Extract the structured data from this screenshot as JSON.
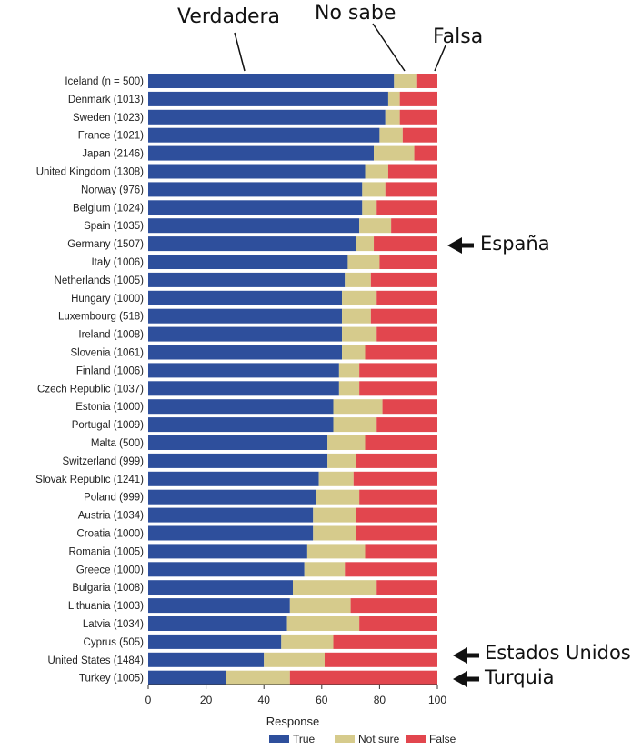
{
  "chart_data": {
    "type": "bar",
    "stacked": true,
    "orientation": "horizontal",
    "categories": [
      "Iceland (n = 500)",
      "Denmark (1013)",
      "Sweden (1023)",
      "France (1021)",
      "Japan (2146)",
      "United Kingdom (1308)",
      "Norway (976)",
      "Belgium (1024)",
      "Spain (1035)",
      "Germany (1507)",
      "Italy (1006)",
      "Netherlands (1005)",
      "Hungary (1000)",
      "Luxembourg (518)",
      "Ireland (1008)",
      "Slovenia (1061)",
      "Finland (1006)",
      "Czech Republic (1037)",
      "Estonia (1000)",
      "Portugal (1009)",
      "Malta (500)",
      "Switzerland (999)",
      "Slovak Republic (1241)",
      "Poland (999)",
      "Austria (1034)",
      "Croatia (1000)",
      "Romania (1005)",
      "Greece (1000)",
      "Bulgaria (1008)",
      "Lithuania (1003)",
      "Latvia (1034)",
      "Cyprus (505)",
      "United States (1484)",
      "Turkey (1005)"
    ],
    "series": [
      {
        "name": "True",
        "color": "#2e4f9c",
        "values": [
          85,
          83,
          82,
          80,
          78,
          75,
          74,
          74,
          73,
          72,
          69,
          68,
          67,
          67,
          67,
          67,
          66,
          66,
          64,
          64,
          62,
          62,
          59,
          58,
          57,
          57,
          55,
          54,
          50,
          49,
          48,
          46,
          40,
          27
        ]
      },
      {
        "name": "Not sure",
        "color": "#d6cb8c",
        "values": [
          8,
          4,
          5,
          8,
          14,
          8,
          8,
          5,
          11,
          6,
          11,
          9,
          12,
          10,
          12,
          8,
          7,
          7,
          17,
          15,
          13,
          10,
          12,
          15,
          15,
          15,
          20,
          14,
          29,
          21,
          25,
          18,
          21,
          22
        ]
      },
      {
        "name": "False",
        "color": "#e2464e",
        "values": [
          7,
          13,
          13,
          12,
          8,
          17,
          18,
          21,
          16,
          22,
          20,
          23,
          21,
          23,
          21,
          25,
          27,
          27,
          19,
          21,
          25,
          28,
          29,
          27,
          28,
          28,
          25,
          32,
          21,
          30,
          27,
          36,
          39,
          51
        ]
      }
    ],
    "x": {
      "ticks": [
        0,
        20,
        40,
        60,
        80,
        100
      ],
      "range": [
        0,
        100
      ]
    },
    "xlabel": "Response",
    "legend": "bottom",
    "grid": false
  },
  "annotations": {
    "top": {
      "verdadera": "Verdadera",
      "no_sabe": "No sabe",
      "falsa": "Falsa"
    },
    "side": {
      "espana": "España",
      "estados_unidos": "Estados Unidos",
      "turquia": "Turquia"
    }
  }
}
